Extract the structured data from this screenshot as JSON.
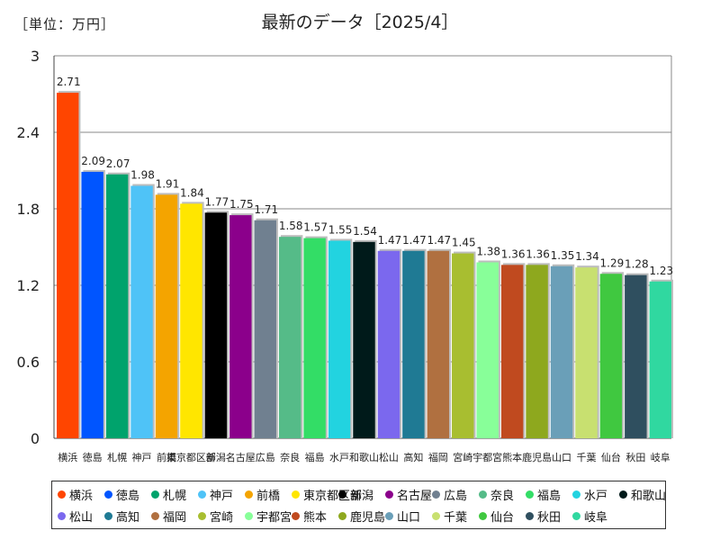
{
  "header": {
    "unit": "［単位：万円］",
    "title": "最新のデータ［2025/4］"
  },
  "chart_data": {
    "type": "bar",
    "title": "最新のデータ［2025/4］",
    "unit": "［単位：万円］",
    "ylim": [
      0,
      3
    ],
    "yticks": [
      "0",
      "0.6",
      "1.2",
      "1.8",
      "2.4",
      "3"
    ],
    "ytick_values": [
      0,
      0.6,
      1.2,
      1.8,
      2.4,
      3
    ],
    "grid": true,
    "legend_position": "bottom",
    "categories": [
      "横浜",
      "徳島",
      "札幌",
      "神戸",
      "前橋",
      "東京都区部",
      "新潟",
      "名古屋",
      "広島",
      "奈良",
      "福島",
      "水戸",
      "和歌山",
      "松山",
      "高知",
      "福岡",
      "宮崎",
      "宇都宮",
      "熊本",
      "鹿児島",
      "山口",
      "千葉",
      "仙台",
      "秋田",
      "岐阜"
    ],
    "values": [
      2.71,
      2.09,
      2.07,
      1.98,
      1.91,
      1.84,
      1.77,
      1.75,
      1.71,
      1.58,
      1.57,
      1.55,
      1.54,
      1.47,
      1.47,
      1.47,
      1.45,
      1.38,
      1.36,
      1.36,
      1.35,
      1.34,
      1.29,
      1.28,
      1.23
    ],
    "value_labels": [
      "2.71",
      "2.09",
      "2.07",
      "1.98",
      "1.91",
      "1.84",
      "1.77",
      "1.75",
      "1.71",
      "1.58",
      "1.57",
      "1.55",
      "1.54",
      "1.47",
      "1.47",
      "1.47",
      "1.45",
      "1.38",
      "1.36",
      "1.36",
      "1.35",
      "1.34",
      "1.29",
      "1.28",
      "1.23"
    ],
    "colors": [
      "#ff4500",
      "#0055ff",
      "#00a36c",
      "#4fc3f7",
      "#f4a400",
      "#ffe600",
      "#000000",
      "#8b008b",
      "#708090",
      "#55bb88",
      "#33dd66",
      "#22d3e0",
      "#001a1a",
      "#7b68ee",
      "#1f7a94",
      "#b07040",
      "#a8be30",
      "#88ff99",
      "#c04a1f",
      "#8ea81e",
      "#6a9fb8",
      "#c8e070",
      "#40c840",
      "#2f4f5f",
      "#30d8a0"
    ]
  }
}
